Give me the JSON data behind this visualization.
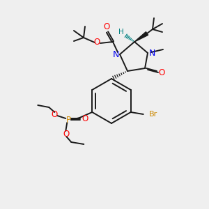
{
  "background_color": "#efefef",
  "bond_color": "#1a1a1a",
  "colors": {
    "N": "#0000ee",
    "O": "#ff0000",
    "Br": "#cc8800",
    "P": "#cc8800",
    "H": "#008080",
    "C": "#1a1a1a"
  },
  "figsize": [
    3.0,
    3.0
  ],
  "dpi": 100
}
